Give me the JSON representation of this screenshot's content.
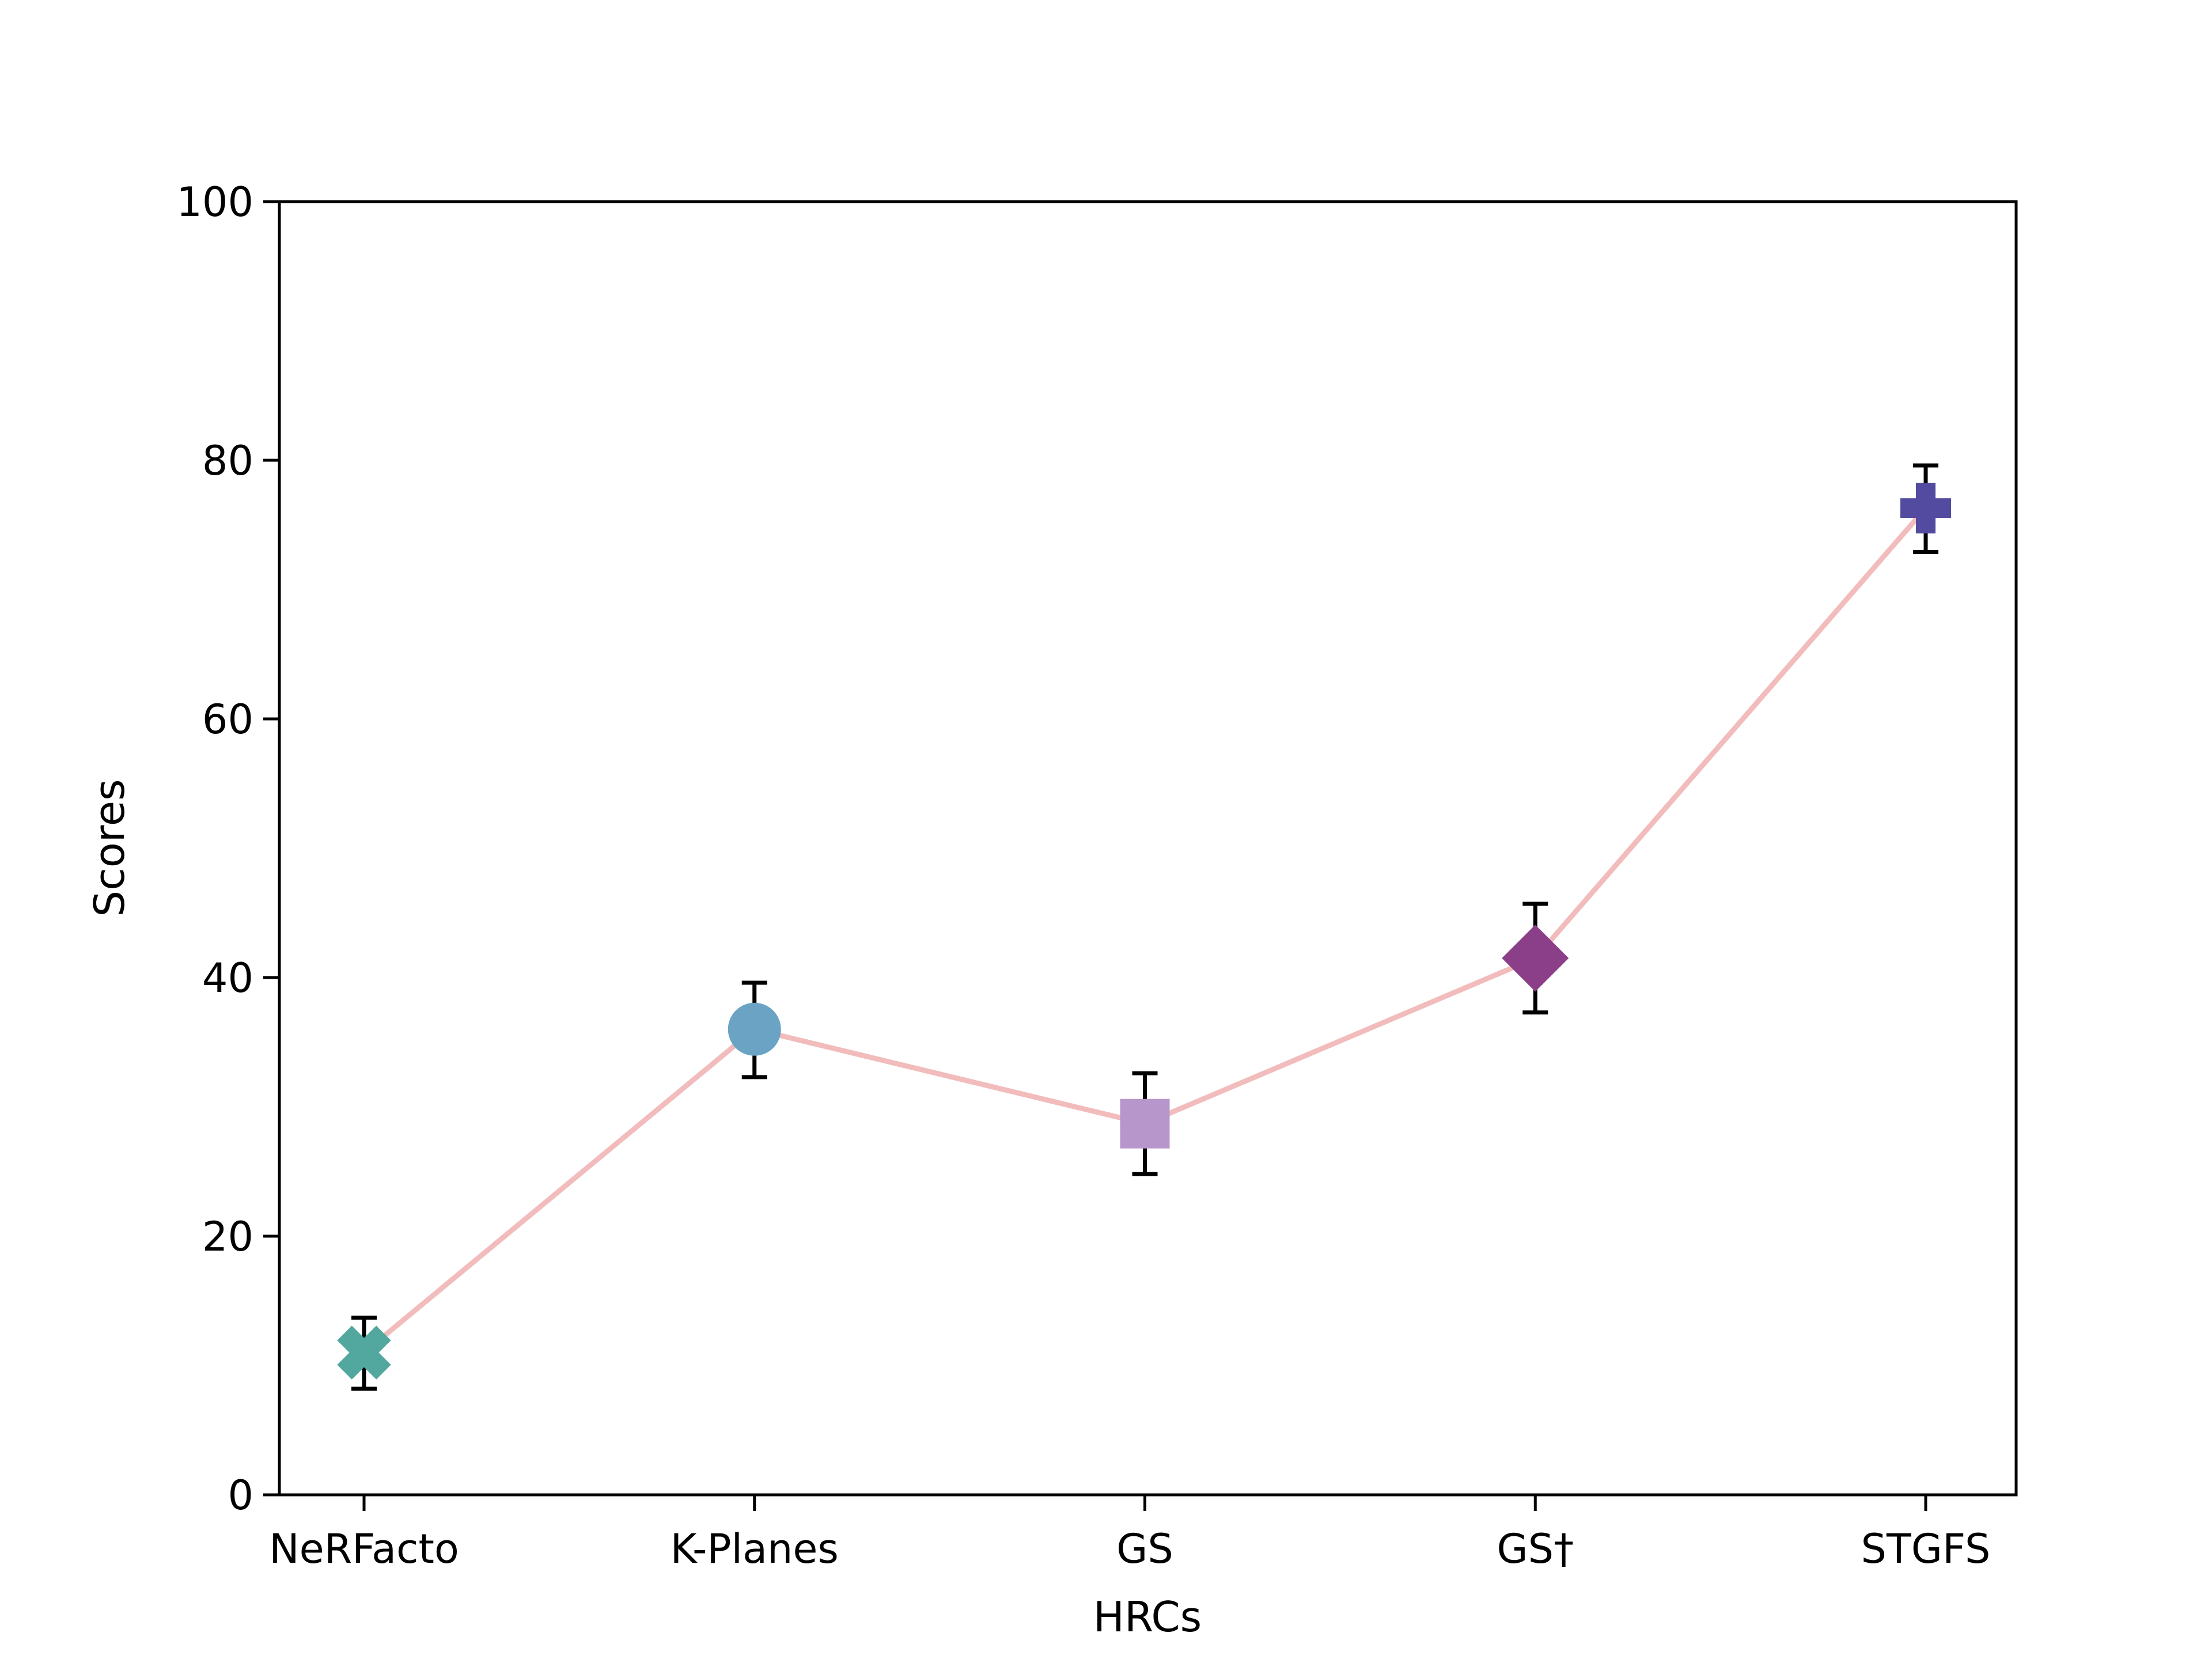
{
  "chart_data": {
    "type": "line",
    "title": "",
    "xlabel": "HRCs",
    "ylabel": "Scores",
    "categories": [
      "NeRFacto",
      "K-Planes",
      "GS",
      "GS†",
      "STGFS"
    ],
    "values": [
      11,
      36,
      28.7,
      41.5,
      76.3
    ],
    "error": [
      {
        "low": 8.2,
        "high": 13.7
      },
      {
        "low": 32.3,
        "high": 39.6
      },
      {
        "low": 24.8,
        "high": 32.6
      },
      {
        "low": 37.3,
        "high": 45.7
      },
      {
        "low": 72.9,
        "high": 79.6
      }
    ],
    "ylim": [
      0,
      100
    ],
    "yticks": [
      0,
      20,
      40,
      60,
      80,
      100
    ],
    "grid": false,
    "line_color": "#f2bcbc",
    "marker_shapes": [
      "x",
      "circle",
      "square",
      "diamond",
      "plus"
    ],
    "marker_colors": [
      "#52a89e",
      "#6aa3c4",
      "#b797cb",
      "#8b3f88",
      "#524ba0"
    ]
  }
}
